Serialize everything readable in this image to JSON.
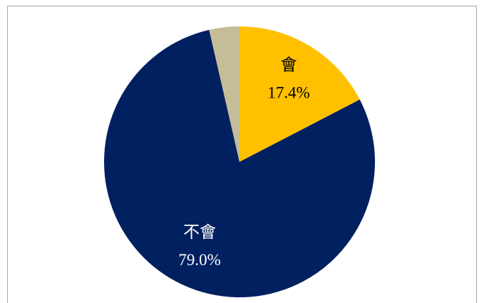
{
  "chart_data": {
    "type": "pie",
    "categories": [
      "會",
      "不會",
      null
    ],
    "values": [
      17.4,
      79.0,
      3.6
    ],
    "value_labels": [
      "17.4%",
      "79.0%",
      null
    ],
    "colors": [
      "#ffc000",
      "#002060",
      "#c4bd97"
    ],
    "label_colors": [
      "#000000",
      "#ffffff",
      "#000000"
    ]
  }
}
